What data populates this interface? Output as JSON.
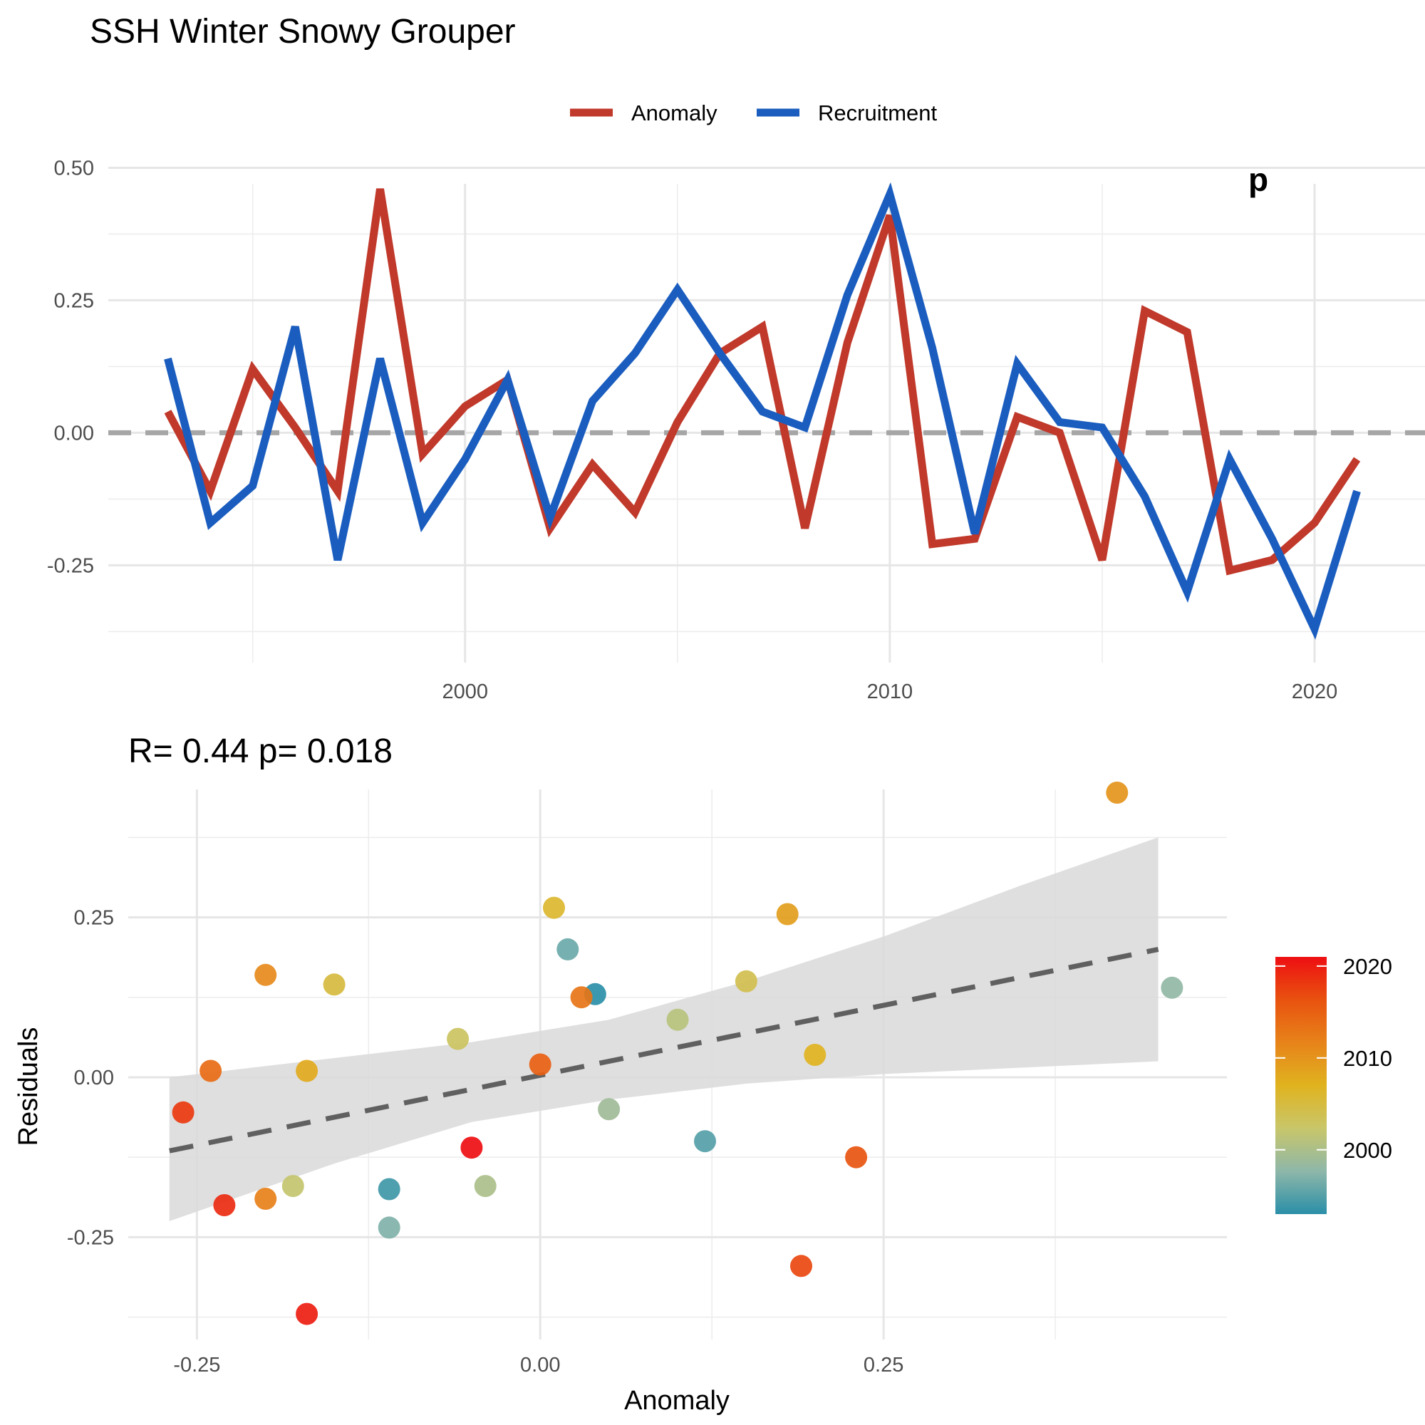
{
  "title": "SSH Winter Snowy Grouper",
  "chart_data": [
    {
      "type": "line",
      "title": "SSH Winter Snowy Grouper",
      "legend": {
        "position": "top",
        "entries": [
          "Anomaly",
          "Recruitment"
        ]
      },
      "corner_annotation": "p",
      "xlabel": "",
      "ylabel": "",
      "x_ticks": [
        "2000",
        "2010",
        "2020"
      ],
      "y_ticks": [
        "0.50",
        "0.25",
        "0.00",
        "-0.25"
      ],
      "xlim": [
        1991.6,
        2022.6
      ],
      "ylim": [
        -0.4,
        0.51
      ],
      "grid": true,
      "reference_line": {
        "y": 0,
        "style": "dashed",
        "color": "#a6a6a6"
      },
      "x": [
        1993,
        1994,
        1995,
        1996,
        1997,
        1998,
        1999,
        2000,
        2001,
        2002,
        2003,
        2004,
        2005,
        2006,
        2007,
        2008,
        2009,
        2010,
        2011,
        2012,
        2013,
        2014,
        2015,
        2016,
        2017,
        2018,
        2019,
        2020,
        2021
      ],
      "series": [
        {
          "name": "Anomaly",
          "color": "#c0392b",
          "values": [
            0.04,
            -0.11,
            0.12,
            0.01,
            -0.11,
            0.46,
            -0.04,
            0.05,
            0.1,
            -0.18,
            -0.06,
            -0.15,
            0.02,
            0.15,
            0.2,
            -0.18,
            0.17,
            0.41,
            -0.21,
            -0.2,
            0.03,
            0.0,
            -0.24,
            0.23,
            0.19,
            -0.26,
            -0.24,
            -0.17,
            -0.05
          ]
        },
        {
          "name": "Recruitment",
          "color": "#1a5dbf",
          "values": [
            0.14,
            -0.17,
            -0.1,
            0.2,
            -0.24,
            0.14,
            -0.17,
            -0.05,
            0.1,
            -0.16,
            0.06,
            0.15,
            0.27,
            0.15,
            0.04,
            0.01,
            0.26,
            0.45,
            0.16,
            -0.19,
            0.13,
            0.02,
            0.01,
            -0.12,
            -0.3,
            -0.05,
            -0.2,
            -0.37,
            -0.11
          ]
        }
      ]
    },
    {
      "type": "scatter",
      "subtitle": "R= 0.44  p= 0.018",
      "xlabel": "Anomaly",
      "ylabel": "Residuals",
      "x_ticks": [
        "-0.25",
        "0.00",
        "0.25"
      ],
      "y_ticks": [
        "0.25",
        "0.00",
        "-0.25"
      ],
      "xlim": [
        -0.3,
        0.5
      ],
      "ylim": [
        -0.41,
        0.45
      ],
      "grid": true,
      "colorbar": {
        "ticks": [
          "2020",
          "2010",
          "2000"
        ],
        "range": [
          1993,
          2021
        ],
        "colors": [
          "#2a8fa8",
          "#8eb7a9",
          "#c8c66a",
          "#e0b31f",
          "#e7831a",
          "#e8520f",
          "#ee0e12"
        ]
      },
      "fit": {
        "line": [
          [
            -0.27,
            -0.115
          ],
          [
            0.45,
            0.2
          ]
        ],
        "band_upper": [
          [
            -0.27,
            0.0
          ],
          [
            -0.15,
            0.03
          ],
          [
            -0.05,
            0.055
          ],
          [
            0.05,
            0.09
          ],
          [
            0.15,
            0.15
          ],
          [
            0.25,
            0.22
          ],
          [
            0.35,
            0.3
          ],
          [
            0.45,
            0.375
          ]
        ],
        "band_lower": [
          [
            -0.27,
            -0.225
          ],
          [
            -0.15,
            -0.135
          ],
          [
            -0.05,
            -0.07
          ],
          [
            0.05,
            -0.035
          ],
          [
            0.15,
            -0.01
          ],
          [
            0.25,
            0.005
          ],
          [
            0.35,
            0.015
          ],
          [
            0.45,
            0.025
          ]
        ],
        "line_color": "#606060",
        "band_color": "#d9d9d9"
      },
      "points": [
        {
          "x": 0.04,
          "y": 0.13,
          "year": 1993
        },
        {
          "x": -0.11,
          "y": -0.175,
          "year": 1994
        },
        {
          "x": 0.12,
          "y": -0.1,
          "year": 1995
        },
        {
          "x": 0.02,
          "y": 0.2,
          "year": 1996
        },
        {
          "x": -0.11,
          "y": -0.235,
          "year": 1997
        },
        {
          "x": 0.46,
          "y": 0.14,
          "year": 1998
        },
        {
          "x": 0.05,
          "y": -0.05,
          "year": 1999
        },
        {
          "x": -0.04,
          "y": -0.17,
          "year": 2000
        },
        {
          "x": 0.1,
          "y": 0.09,
          "year": 2001
        },
        {
          "x": -0.18,
          "y": -0.17,
          "year": 2002
        },
        {
          "x": -0.06,
          "y": 0.06,
          "year": 2003
        },
        {
          "x": 0.15,
          "y": 0.15,
          "year": 2004
        },
        {
          "x": -0.15,
          "y": 0.145,
          "year": 2005
        },
        {
          "x": 0.01,
          "y": 0.265,
          "year": 2006
        },
        {
          "x": 0.2,
          "y": 0.035,
          "year": 2007
        },
        {
          "x": -0.17,
          "y": 0.01,
          "year": 2008
        },
        {
          "x": 0.18,
          "y": 0.255,
          "year": 2009
        },
        {
          "x": 0.42,
          "y": 0.445,
          "year": 2010
        },
        {
          "x": -0.2,
          "y": 0.16,
          "year": 2011
        },
        {
          "x": -0.2,
          "y": -0.19,
          "year": 2012
        },
        {
          "x": 0.03,
          "y": 0.125,
          "year": 2013
        },
        {
          "x": -0.24,
          "y": 0.01,
          "year": 2014
        },
        {
          "x": 0.0,
          "y": 0.02,
          "year": 2015
        },
        {
          "x": 0.23,
          "y": -0.125,
          "year": 2016
        },
        {
          "x": 0.19,
          "y": -0.295,
          "year": 2017
        },
        {
          "x": -0.26,
          "y": -0.055,
          "year": 2018
        },
        {
          "x": -0.23,
          "y": -0.2,
          "year": 2019
        },
        {
          "x": -0.17,
          "y": -0.37,
          "year": 2020
        },
        {
          "x": -0.05,
          "y": -0.11,
          "year": 2021
        }
      ]
    }
  ]
}
